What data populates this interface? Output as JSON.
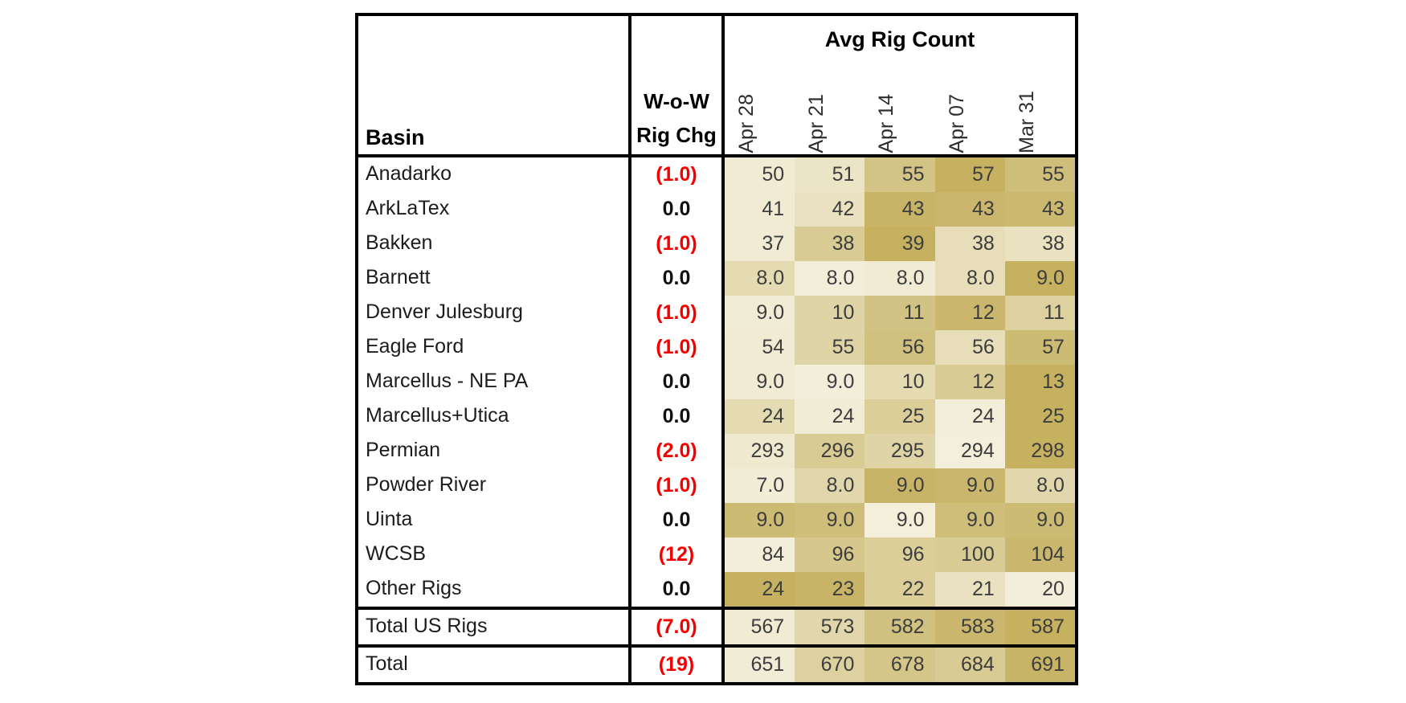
{
  "colors": {
    "heat_low": "#f5f1df",
    "heat_high": "#c5b160",
    "negative_red": "#f40000",
    "value_text": "#3d3d3d",
    "border": "#000000"
  },
  "table": {
    "title": "Avg Rig Count",
    "basin_header": "Basin",
    "wow_header": [
      "W-o-W",
      "Rig Chg"
    ],
    "date_columns": [
      "Apr 28",
      "Apr 21",
      "Apr 14",
      "Apr 07",
      "Mar 31"
    ],
    "rows": [
      {
        "basin": "Anadarko",
        "wow": "(1.0)",
        "negative": true,
        "values": [
          "50",
          "51",
          "55",
          "57",
          "55"
        ],
        "heat": [
          0.1,
          0.2,
          0.7,
          1.0,
          0.8
        ]
      },
      {
        "basin": "ArkLaTex",
        "wow": "0.0",
        "negative": false,
        "values": [
          "41",
          "42",
          "43",
          "43",
          "43"
        ],
        "heat": [
          0.1,
          0.25,
          0.95,
          0.9,
          0.88
        ]
      },
      {
        "basin": "Bakken",
        "wow": "(1.0)",
        "negative": true,
        "values": [
          "37",
          "38",
          "39",
          "38",
          "38"
        ],
        "heat": [
          0.1,
          0.6,
          1.0,
          0.3,
          0.25
        ]
      },
      {
        "basin": "Barnett",
        "wow": "0.0",
        "negative": false,
        "values": [
          "8.0",
          "8.0",
          "8.0",
          "8.0",
          "9.0"
        ],
        "heat": [
          0.35,
          0.05,
          0.1,
          0.3,
          1.0
        ]
      },
      {
        "basin": "Denver Julesburg",
        "wow": "(1.0)",
        "negative": true,
        "values": [
          "9.0",
          "10",
          "11",
          "12",
          "11"
        ],
        "heat": [
          0.08,
          0.45,
          0.72,
          0.9,
          0.5
        ]
      },
      {
        "basin": "Eagle Ford",
        "wow": "(1.0)",
        "negative": true,
        "values": [
          "54",
          "55",
          "56",
          "56",
          "57"
        ],
        "heat": [
          0.1,
          0.45,
          0.75,
          0.3,
          0.85
        ]
      },
      {
        "basin": "Marcellus - NE PA",
        "wow": "0.0",
        "negative": false,
        "values": [
          "9.0",
          "9.0",
          "10",
          "12",
          "13"
        ],
        "heat": [
          0.1,
          0.04,
          0.35,
          0.6,
          1.0
        ]
      },
      {
        "basin": "Marcellus+Utica",
        "wow": "0.0",
        "negative": false,
        "values": [
          "24",
          "24",
          "25",
          "24",
          "25"
        ],
        "heat": [
          0.35,
          0.08,
          0.55,
          0.05,
          1.0
        ]
      },
      {
        "basin": "Permian",
        "wow": "(2.0)",
        "negative": true,
        "values": [
          "293",
          "296",
          "295",
          "294",
          "298"
        ],
        "heat": [
          0.12,
          0.6,
          0.45,
          0.03,
          1.0
        ]
      },
      {
        "basin": "Powder River",
        "wow": "(1.0)",
        "negative": true,
        "values": [
          "7.0",
          "8.0",
          "9.0",
          "9.0",
          "8.0"
        ],
        "heat": [
          0.07,
          0.4,
          0.95,
          0.9,
          0.4
        ]
      },
      {
        "basin": "Uinta",
        "wow": "0.0",
        "negative": false,
        "values": [
          "9.0",
          "9.0",
          "9.0",
          "9.0",
          "9.0"
        ],
        "heat": [
          0.85,
          0.8,
          0.03,
          0.8,
          0.85
        ]
      },
      {
        "basin": "WCSB",
        "wow": "(12)",
        "negative": true,
        "values": [
          "84",
          "96",
          "96",
          "100",
          "104"
        ],
        "heat": [
          0.05,
          0.65,
          0.55,
          0.6,
          0.9
        ]
      },
      {
        "basin": "Other Rigs",
        "wow": "0.0",
        "negative": false,
        "values": [
          "24",
          "23",
          "22",
          "21",
          "20"
        ],
        "heat": [
          1.0,
          0.95,
          0.55,
          0.25,
          0.04
        ]
      }
    ],
    "totals": [
      {
        "basin": "Total US Rigs",
        "wow": "(7.0)",
        "negative": true,
        "values": [
          "567",
          "573",
          "582",
          "583",
          "587"
        ],
        "heat": [
          0.1,
          0.4,
          0.75,
          0.9,
          1.0
        ]
      },
      {
        "basin": "Total",
        "wow": "(19)",
        "negative": true,
        "values": [
          "651",
          "670",
          "678",
          "684",
          "691"
        ],
        "heat": [
          0.08,
          0.5,
          0.68,
          0.6,
          0.95
        ]
      }
    ]
  },
  "chart_data": {
    "type": "table",
    "title": "Avg Rig Count",
    "columns": [
      "Basin",
      "W-o-W Rig Chg",
      "Apr 28",
      "Apr 21",
      "Apr 14",
      "Apr 07",
      "Mar 31"
    ],
    "rows": [
      [
        "Anadarko",
        -1.0,
        50,
        51,
        55,
        57,
        55
      ],
      [
        "ArkLaTex",
        0.0,
        41,
        42,
        43,
        43,
        43
      ],
      [
        "Bakken",
        -1.0,
        37,
        38,
        39,
        38,
        38
      ],
      [
        "Barnett",
        0.0,
        8.0,
        8.0,
        8.0,
        8.0,
        9.0
      ],
      [
        "Denver Julesburg",
        -1.0,
        9.0,
        10,
        11,
        12,
        11
      ],
      [
        "Eagle Ford",
        -1.0,
        54,
        55,
        56,
        56,
        57
      ],
      [
        "Marcellus - NE PA",
        0.0,
        9.0,
        9.0,
        10,
        12,
        13
      ],
      [
        "Marcellus+Utica",
        0.0,
        24,
        24,
        25,
        24,
        25
      ],
      [
        "Permian",
        -2.0,
        293,
        296,
        295,
        294,
        298
      ],
      [
        "Powder River",
        -1.0,
        7.0,
        8.0,
        9.0,
        9.0,
        8.0
      ],
      [
        "Uinta",
        0.0,
        9.0,
        9.0,
        9.0,
        9.0,
        9.0
      ],
      [
        "WCSB",
        -12,
        84,
        96,
        96,
        100,
        104
      ],
      [
        "Other Rigs",
        0.0,
        24,
        23,
        22,
        21,
        20
      ],
      [
        "Total US Rigs",
        -7.0,
        567,
        573,
        582,
        583,
        587
      ],
      [
        "Total",
        -19,
        651,
        670,
        678,
        684,
        691
      ]
    ],
    "notes": "Negative W-o-W changes shown in red parentheses; rig-count cells shaded with per-row two-color heatmap (low=light cream, high=dark gold)",
    "heatmap": {
      "scope": "per-row",
      "low_color": "#f5f1df",
      "high_color": "#c5b160"
    }
  }
}
